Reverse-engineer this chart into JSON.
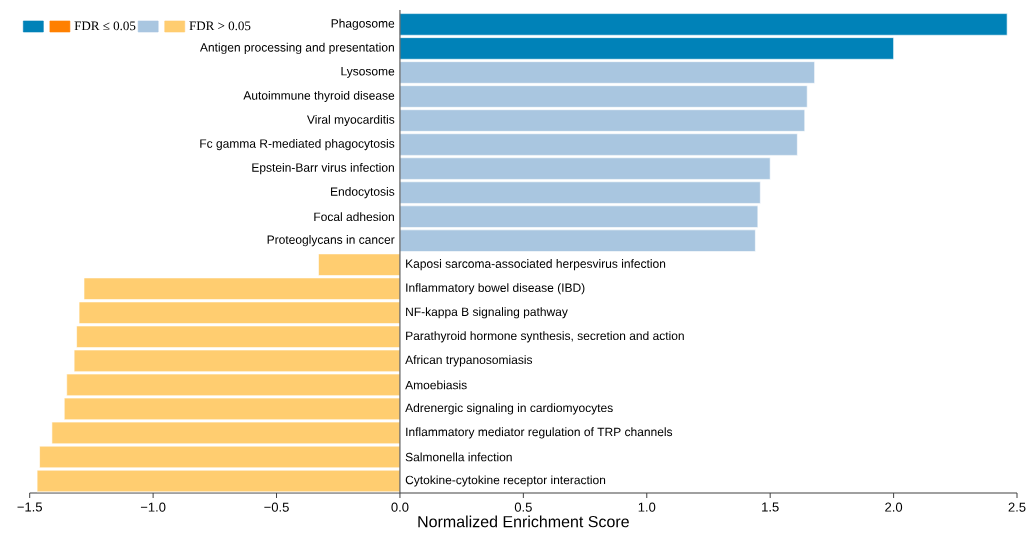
{
  "chart_data": {
    "type": "bar",
    "orientation": "horizontal",
    "xlabel": "Normalized Enrichment Score",
    "categories": [
      "Phagosome",
      "Antigen processing and presentation",
      "Lysosome",
      "Autoimmune thyroid disease",
      "Viral myocarditis",
      "Fc gamma R-mediated phagocytosis",
      "Epstein-Barr virus infection",
      "Endocytosis",
      "Focal adhesion",
      "Proteoglycans in cancer",
      "Kaposi sarcoma-associated herpesvirus infection",
      "Inflammatory bowel disease (IBD)",
      "NF-kappa B signaling pathway",
      "Parathyroid hormone synthesis, secretion and action",
      "African trypanosomiasis",
      "Amoebiasis",
      "Adrenergic signaling in cardiomyocytes",
      "Inflammatory mediator regulation of TRP channels",
      "Salmonella infection",
      "Cytokine-cytokine receptor interaction"
    ],
    "series": [
      {
        "color": "#0082b8",
        "values": [
          2.46,
          2.0,
          null,
          null,
          null,
          null,
          null,
          null,
          null,
          null,
          null,
          null,
          null,
          null,
          null,
          null,
          null,
          null,
          null,
          null
        ]
      },
      {
        "name": "FDR ≤ 0.05",
        "color": "#ff8000",
        "values": [
          null,
          null,
          null,
          null,
          null,
          null,
          null,
          null,
          null,
          null,
          null,
          null,
          null,
          null,
          null,
          null,
          null,
          null,
          null,
          null
        ]
      },
      {
        "color": "#a9c6e0",
        "values": [
          null,
          null,
          1.68,
          1.65,
          1.64,
          1.61,
          1.5,
          1.46,
          1.45,
          1.44,
          null,
          null,
          null,
          null,
          null,
          null,
          null,
          null,
          null,
          null
        ]
      },
      {
        "name": "FDR > 0.05",
        "color": "#ffcd70",
        "values": [
          null,
          null,
          null,
          null,
          null,
          null,
          null,
          null,
          null,
          null,
          -0.33,
          -1.28,
          -1.3,
          -1.31,
          -1.32,
          -1.35,
          -1.36,
          -1.41,
          -1.46,
          -1.47
        ]
      }
    ],
    "xlim": [
      -1.5,
      2.5
    ],
    "xticks": [
      {
        "value": -1.5,
        "label": "−1.5"
      },
      {
        "value": -1.0,
        "label": "−1.0"
      },
      {
        "value": -0.5,
        "label": "−0.5"
      },
      {
        "value": 0,
        "label": "0.0"
      },
      {
        "value": 0.5,
        "label": "0.5"
      },
      {
        "value": 1.0,
        "label": "1.0"
      },
      {
        "value": 1.5,
        "label": "1.5"
      },
      {
        "value": 2.0,
        "label": "2.0"
      },
      {
        "value": 2.5,
        "label": "2.5"
      }
    ],
    "legend": "top left",
    "grid": false
  }
}
